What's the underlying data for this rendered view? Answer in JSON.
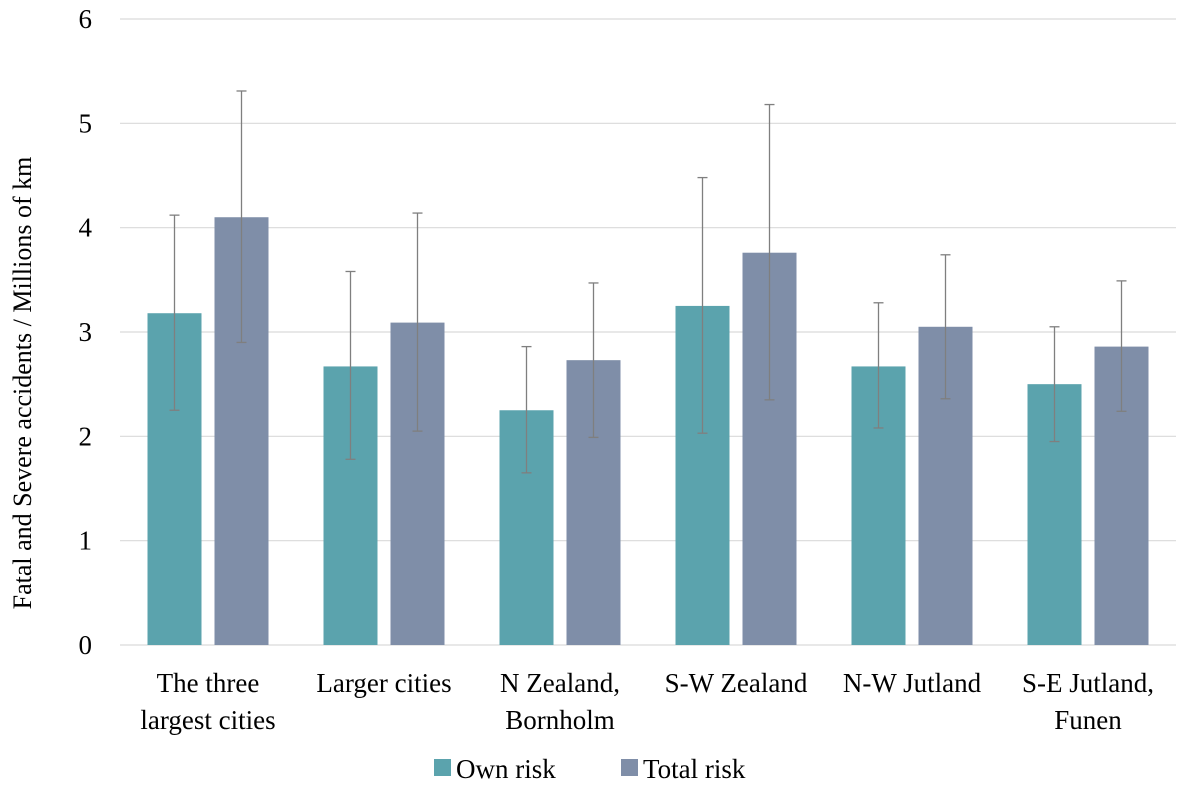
{
  "chart_data": {
    "type": "bar",
    "title": "",
    "xlabel": "",
    "ylabel": "Fatal and Severe accidents / Millions of km",
    "ylim": [
      0,
      6
    ],
    "yticks": [
      0,
      1,
      2,
      3,
      4,
      5,
      6
    ],
    "grid": true,
    "legend_position": "bottom",
    "categories": [
      [
        "The three",
        "largest cities"
      ],
      [
        "Larger cities"
      ],
      [
        "N Zealand,",
        "Bornholm"
      ],
      [
        "S-W Zealand"
      ],
      [
        "N-W Jutland"
      ],
      [
        "S-E Jutland,",
        "Funen"
      ]
    ],
    "series": [
      {
        "name": "Own risk",
        "color": "#5ba3ad",
        "values": [
          3.18,
          2.67,
          2.25,
          3.25,
          2.67,
          2.5
        ],
        "error_low": [
          2.25,
          1.78,
          1.65,
          2.03,
          2.08,
          1.95
        ],
        "error_high": [
          4.12,
          3.58,
          2.86,
          4.48,
          3.28,
          3.05
        ]
      },
      {
        "name": "Total risk",
        "color": "#7f8ea8",
        "values": [
          4.1,
          3.09,
          2.73,
          3.76,
          3.05,
          2.86
        ],
        "error_low": [
          2.9,
          2.05,
          1.99,
          2.35,
          2.36,
          2.24
        ],
        "error_high": [
          5.31,
          4.14,
          3.47,
          5.18,
          3.74,
          3.49
        ]
      }
    ],
    "error_bar_color": "#7f7f7f",
    "grid_color": "#d9d9d9"
  }
}
